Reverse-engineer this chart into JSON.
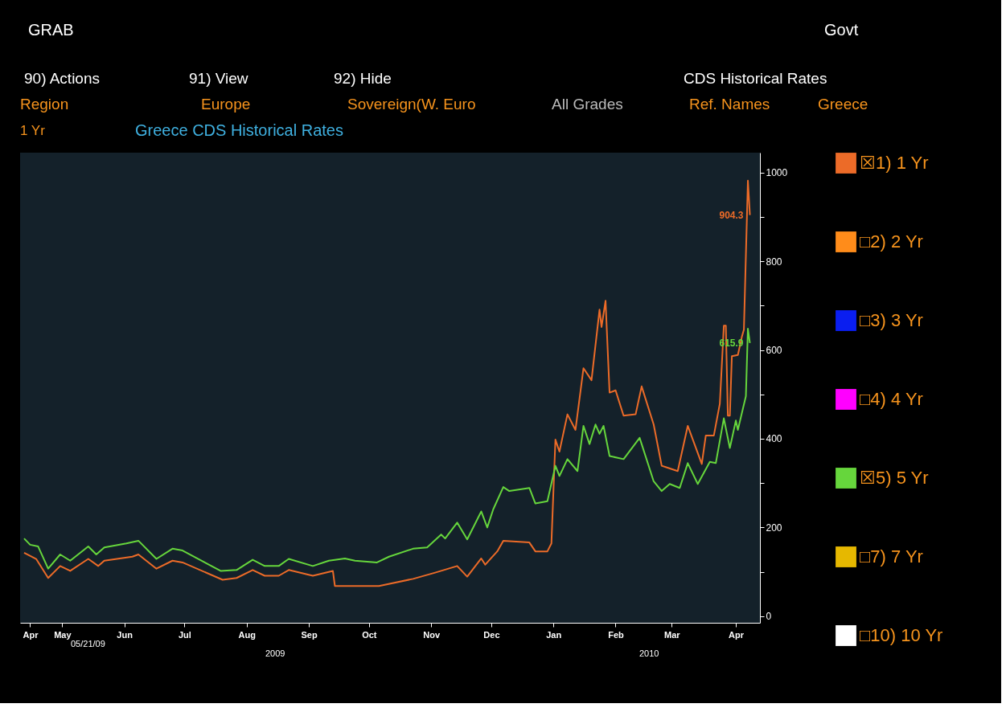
{
  "chart_data": {
    "type": "line",
    "title": "Greece CDS Historical Rates",
    "xlim": [
      "2009-04-24",
      "2010-04-28"
    ],
    "xticks": [
      {
        "value": "2009-04-29",
        "label": "Apr"
      },
      {
        "value": "2009-05-15",
        "label": "May"
      },
      {
        "value": "2009-06-15",
        "label": "Jun"
      },
      {
        "value": "2009-07-15",
        "label": "Jul"
      },
      {
        "value": "2009-08-15",
        "label": "Aug"
      },
      {
        "value": "2009-09-15",
        "label": "Sep"
      },
      {
        "value": "2009-10-15",
        "label": "Oct"
      },
      {
        "value": "2009-11-15",
        "label": "Nov"
      },
      {
        "value": "2009-12-15",
        "label": "Dec"
      },
      {
        "value": "2010-01-15",
        "label": "Jan"
      },
      {
        "value": "2010-02-15",
        "label": "Feb"
      },
      {
        "value": "2010-03-15",
        "label": "Mar"
      },
      {
        "value": "2010-04-16",
        "label": "Apr"
      }
    ],
    "ylim": [
      -15,
      1045
    ],
    "yticks": [
      0,
      {
        "value": 100,
        "label": null
      },
      200,
      {
        "value": 300,
        "label": null
      },
      400,
      {
        "value": 500,
        "label": null
      },
      600,
      {
        "value": 700,
        "label": null
      },
      800,
      {
        "value": 900,
        "label": null
      },
      1000
    ],
    "legend": "right",
    "series": [
      {
        "name": "☒1) 1 Yr",
        "color": "#ec6b28",
        "x": [
          "2009-04-26",
          "2009-05-02",
          "2009-05-08",
          "2009-05-14",
          "2009-05-19",
          "2009-05-28",
          "2009-06-02",
          "2009-06-05",
          "2009-06-19",
          "2009-06-22",
          "2009-07-01",
          "2009-07-09",
          "2009-07-14",
          "2009-08-03",
          "2009-08-10",
          "2009-08-18",
          "2009-08-24",
          "2009-08-31",
          "2009-09-05",
          "2009-09-17",
          "2009-09-27",
          "2009-09-28",
          "2009-10-08",
          "2009-10-20",
          "2009-11-06",
          "2009-11-17",
          "2009-11-28",
          "2009-12-03",
          "2009-12-10",
          "2009-12-12",
          "2009-12-18",
          "2009-12-21",
          "2010-01-03",
          "2010-01-06",
          "2010-01-12",
          "2010-01-14",
          "2010-01-16",
          "2010-01-18",
          "2010-01-22",
          "2010-01-26",
          "2010-01-30",
          "2010-02-03",
          "2010-02-07",
          "2010-02-08",
          "2010-02-10",
          "2010-02-12",
          "2010-02-15",
          "2010-02-19",
          "2010-02-25",
          "2010-02-28",
          "2010-03-06",
          "2010-03-10",
          "2010-03-12",
          "2010-03-18",
          "2010-03-23",
          "2010-03-30",
          "2010-04-01",
          "2010-04-05",
          "2010-04-08",
          "2010-04-10",
          "2010-04-11",
          "2010-04-12",
          "2010-04-13",
          "2010-04-14",
          "2010-04-17",
          "2010-04-19",
          "2010-04-20",
          "2010-04-22",
          "2010-04-23"
        ],
        "values": [
          143,
          129,
          86,
          113,
          102,
          129,
          113,
          125,
          134,
          139,
          107,
          125,
          121,
          82,
          86,
          104,
          91,
          91,
          104,
          91,
          102,
          68,
          68,
          68,
          84,
          98,
          113,
          89,
          130,
          116,
          146,
          170,
          166,
          146,
          146,
          164,
          398,
          371,
          455,
          420,
          559,
          532,
          691,
          652,
          711,
          504,
          509,
          452,
          455,
          518,
          432,
          339,
          336,
          327,
          429,
          343,
          407,
          407,
          479,
          655,
          655,
          452,
          452,
          586,
          589,
          630,
          646,
          982,
          904.3
        ],
        "value_labels": [
          null,
          null,
          null,
          null,
          null,
          null,
          null,
          null,
          null,
          null,
          null,
          null,
          null,
          null,
          null,
          null,
          null,
          null,
          null,
          null,
          null,
          null,
          null,
          null,
          null,
          null,
          null,
          null,
          null,
          null,
          null,
          null,
          null,
          null,
          null,
          null,
          null,
          null,
          null,
          null,
          null,
          null,
          null,
          null,
          null,
          null,
          null,
          null,
          null,
          null,
          null,
          null,
          null,
          null,
          null,
          null,
          null,
          null,
          null,
          null,
          null,
          null,
          null,
          null,
          null,
          null,
          null,
          null,
          "904.3"
        ]
      },
      {
        "name": "□2) 2 Yr",
        "color": "#ff8c1a"
      },
      {
        "name": "□3) 3 Yr",
        "color": "#0a1ef0"
      },
      {
        "name": "□4) 4 Yr",
        "color": "#ff00ff"
      },
      {
        "name": "☒5) 5 Yr",
        "color": "#66d63c",
        "x": [
          "2009-04-26",
          "2009-04-29",
          "2009-05-03",
          "2009-05-08",
          "2009-05-14",
          "2009-05-19",
          "2009-05-28",
          "2009-06-01",
          "2009-06-05",
          "2009-06-16",
          "2009-06-22",
          "2009-07-01",
          "2009-07-09",
          "2009-07-14",
          "2009-08-02",
          "2009-08-10",
          "2009-08-18",
          "2009-08-24",
          "2009-08-31",
          "2009-09-05",
          "2009-09-17",
          "2009-09-25",
          "2009-10-03",
          "2009-10-08",
          "2009-10-19",
          "2009-10-25",
          "2009-11-06",
          "2009-11-13",
          "2009-11-20",
          "2009-11-22",
          "2009-11-28",
          "2009-12-03",
          "2009-12-10",
          "2009-12-13",
          "2009-12-16",
          "2009-12-21",
          "2009-12-24",
          "2010-01-03",
          "2010-01-06",
          "2010-01-12",
          "2010-01-16",
          "2010-01-18",
          "2010-01-22",
          "2010-01-27",
          "2010-01-30",
          "2010-02-02",
          "2010-02-05",
          "2010-02-07",
          "2010-02-09",
          "2010-02-12",
          "2010-02-19",
          "2010-02-27",
          "2010-03-06",
          "2010-03-10",
          "2010-03-14",
          "2010-03-19",
          "2010-03-23",
          "2010-03-28",
          "2010-04-03",
          "2010-04-06",
          "2010-04-10",
          "2010-04-13",
          "2010-04-16",
          "2010-04-17",
          "2010-04-21",
          "2010-04-22",
          "2010-04-23"
        ],
        "values": [
          175,
          161,
          157,
          107,
          139,
          125,
          157,
          139,
          155,
          164,
          170,
          129,
          152,
          148,
          102,
          104,
          127,
          113,
          113,
          129,
          113,
          125,
          130,
          125,
          121,
          134,
          152,
          155,
          184,
          175,
          211,
          173,
          236,
          200,
          241,
          291,
          282,
          289,
          254,
          259,
          339,
          316,
          354,
          327,
          429,
          388,
          432,
          411,
          429,
          361,
          354,
          402,
          304,
          282,
          298,
          289,
          345,
          298,
          348,
          345,
          446,
          379,
          441,
          420,
          496,
          648,
          615.9
        ],
        "value_labels": [
          null,
          null,
          null,
          null,
          null,
          null,
          null,
          null,
          null,
          null,
          null,
          null,
          null,
          null,
          null,
          null,
          null,
          null,
          null,
          null,
          null,
          null,
          null,
          null,
          null,
          null,
          null,
          null,
          null,
          null,
          null,
          null,
          null,
          null,
          null,
          null,
          null,
          null,
          null,
          null,
          null,
          null,
          null,
          null,
          null,
          null,
          null,
          null,
          null,
          null,
          null,
          null,
          null,
          null,
          null,
          null,
          null,
          null,
          null,
          null,
          null,
          null,
          null,
          null,
          null,
          null,
          "615.9"
        ]
      },
      {
        "name": "□7) 7 Yr",
        "color": "#e6b800"
      },
      {
        "name": "□10) 10 Yr",
        "color": "#ffffff"
      }
    ],
    "annotations": [
      "GRAB",
      "Govt",
      "90) Actions",
      "91) View",
      "92) Hide",
      "CDS Historical Rates",
      "Region",
      "Europe",
      "Sovereign(W. Euro",
      "All Grades",
      "Ref. Names",
      "Greece",
      "1 Yr",
      "05/21/09",
      "2009",
      "2010"
    ]
  }
}
